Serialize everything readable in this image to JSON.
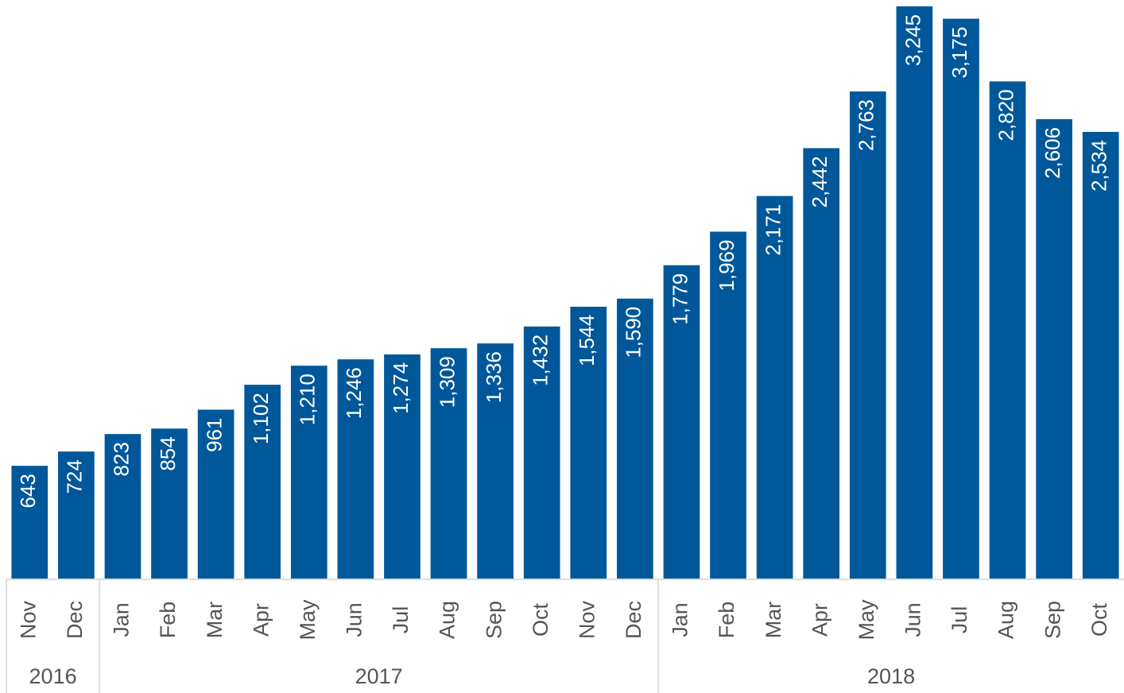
{
  "chart_data": {
    "type": "bar",
    "categories": [
      "Nov",
      "Dec",
      "Jan",
      "Feb",
      "Mar",
      "Apr",
      "May",
      "Jun",
      "Jul",
      "Aug",
      "Sep",
      "Oct",
      "Nov",
      "Dec",
      "Jan",
      "Feb",
      "Mar",
      "Apr",
      "May",
      "Jun",
      "Jul",
      "Aug",
      "Sep",
      "Oct"
    ],
    "values": [
      643,
      724,
      823,
      854,
      961,
      1102,
      1210,
      1246,
      1274,
      1309,
      1336,
      1432,
      1544,
      1590,
      1779,
      1969,
      2171,
      2442,
      2763,
      3245,
      3175,
      2820,
      2606,
      2534
    ],
    "value_labels": [
      "643",
      "724",
      "823",
      "854",
      "961",
      "1,102",
      "1,210",
      "1,246",
      "1,274",
      "1,309",
      "1,336",
      "1,432",
      "1,544",
      "1,590",
      "1,779",
      "1,969",
      "2,171",
      "2,442",
      "2,763",
      "3,245",
      "3,175",
      "2,820",
      "2,606",
      "2,534"
    ],
    "year_groups": [
      {
        "label": "2016",
        "span": 2
      },
      {
        "label": "2017",
        "span": 12
      },
      {
        "label": "2018",
        "span": 10
      }
    ],
    "color": "#00589a",
    "ylim": [
      0,
      3245
    ]
  }
}
